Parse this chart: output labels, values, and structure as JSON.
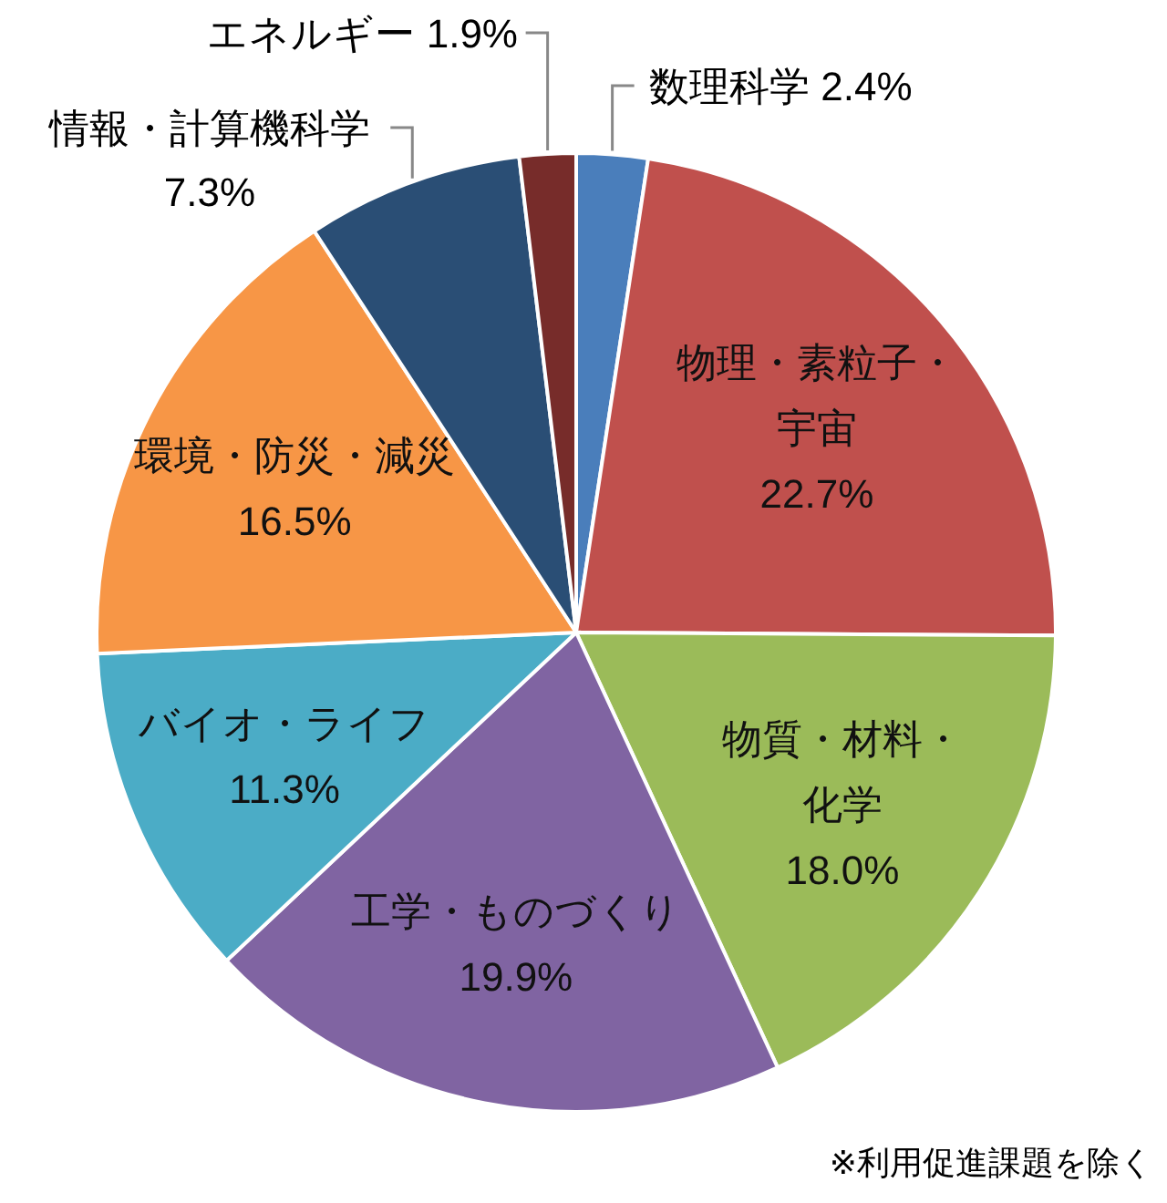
{
  "chart_data": {
    "type": "pie",
    "categories": [
      "数理科学",
      "物理・素粒子・宇宙",
      "物質・材料・化学",
      "工学・ものづくり",
      "バイオ・ライフ",
      "環境・防災・減災",
      "情報・計算機科学",
      "エネルギー"
    ],
    "values": [
      2.4,
      22.7,
      18.0,
      19.9,
      11.3,
      16.5,
      7.3,
      1.9
    ],
    "value_labels": [
      "2.4%",
      "22.7%",
      "18.0%",
      "19.9%",
      "11.3%",
      "16.5%",
      "7.3%",
      "1.9%"
    ],
    "colors": [
      "#4a7ebb",
      "#c0504d",
      "#9bbb59",
      "#8064a2",
      "#4bacc6",
      "#f79646",
      "#2a4e75",
      "#772c2a"
    ],
    "annotations": [
      "※利用促進課題を除く"
    ]
  }
}
